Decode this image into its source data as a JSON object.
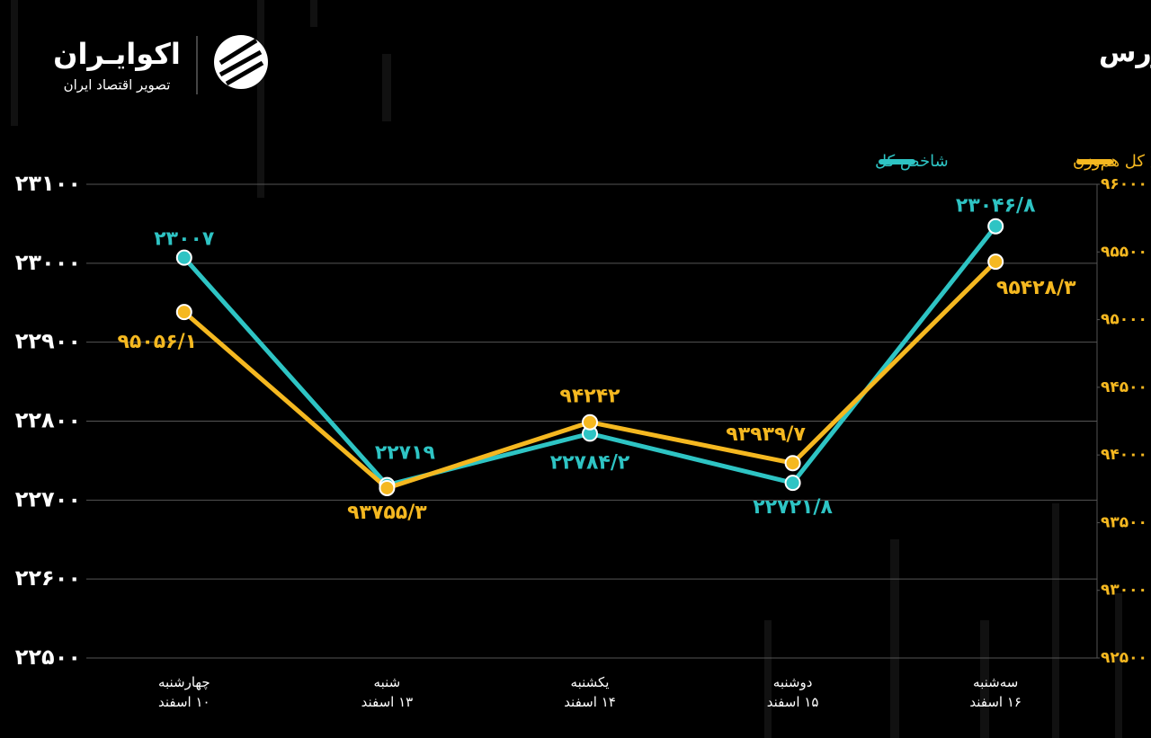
{
  "brand": {
    "name": "اکوایـران",
    "tagline": "تصویر اقتصاد ایران"
  },
  "chart_data": {
    "type": "line",
    "title": "روند هفته شاخص کل و شاخص کل هم‌وزن فرابورس",
    "categories": [
      "چهارشنبه\n۱۰ اسفند",
      "شنبه\n۱۳ اسفند",
      "یکشنبه\n۱۴ اسفند",
      "دوشنبه\n۱۵ اسفند",
      "سه‌شنبه\n۱۶ اسفند"
    ],
    "series": [
      {
        "name": "شاخص کل",
        "color": "#2ec4c4",
        "values": [
          23007,
          22719,
          22784.2,
          22721.8,
          23046.8
        ],
        "value_labels": [
          "۲۳۰۰۷",
          "۲۲۷۱۹",
          "۲۲۷۸۴/۲",
          "۲۲۷۲۱/۸",
          "۲۳۰۴۶/۸"
        ]
      },
      {
        "name": "شاخص کل هم‌وزن",
        "color": "#f5b820",
        "axis": "y2",
        "values": [
          95056.1,
          93755.3,
          94242,
          93939.7,
          95428.3
        ],
        "value_labels": [
          "۹۵۰۵۶/۱",
          "۹۳۷۵۵/۳",
          "۹۴۲۴۲",
          "۹۳۹۳۹/۷",
          "۹۵۴۲۸/۳"
        ]
      }
    ],
    "ylim": [
      22500,
      23100
    ],
    "yticks": [
      {
        "value": 22500,
        "label": "۲۲۵۰۰"
      },
      {
        "value": 22600,
        "label": "۲۲۶۰۰"
      },
      {
        "value": 22700,
        "label": "۲۲۷۰۰"
      },
      {
        "value": 22800,
        "label": "۲۲۸۰۰"
      },
      {
        "value": 22900,
        "label": "۲۲۹۰۰"
      },
      {
        "value": 23000,
        "label": "۲۳۰۰۰"
      },
      {
        "value": 23100,
        "label": "۲۳۱۰۰"
      }
    ],
    "y2lim": [
      92500,
      96000
    ],
    "y2ticks": [
      {
        "value": 92500,
        "label": "۹۲۵۰۰"
      },
      {
        "value": 93000,
        "label": "۹۳۰۰۰"
      },
      {
        "value": 93500,
        "label": "۹۳۵۰۰"
      },
      {
        "value": 94000,
        "label": "۹۴۰۰۰"
      },
      {
        "value": 94500,
        "label": "۹۴۵۰۰"
      },
      {
        "value": 95000,
        "label": "۹۵۰۰۰"
      },
      {
        "value": 95500,
        "label": "۹۵۵۰۰"
      },
      {
        "value": 96000,
        "label": "۹۶۰۰۰"
      }
    ],
    "grid": true
  }
}
